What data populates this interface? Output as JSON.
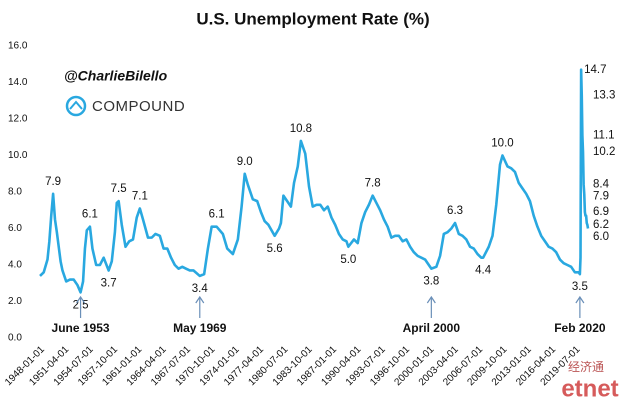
{
  "chart_data": {
    "type": "line",
    "title": "U.S. Unemployment Rate (%)",
    "handle": "@CharlieBilello",
    "brand": "COMPOUND",
    "watermark": [
      "经济通",
      "etnet"
    ],
    "color": "#29a8e0",
    "xlim": [
      "1948-01-01",
      "2021-03-01"
    ],
    "ylim": [
      0,
      16
    ],
    "yticks": [
      {
        "value": 0,
        "label": "0.0"
      },
      {
        "value": 2,
        "label": "2.0"
      },
      {
        "value": 4,
        "label": "4.0"
      },
      {
        "value": 6,
        "label": "6.0"
      },
      {
        "value": 8,
        "label": "8.0"
      },
      {
        "value": 10,
        "label": "10.0"
      },
      {
        "value": 12,
        "label": "12.0"
      },
      {
        "value": 14,
        "label": "14.0"
      },
      {
        "value": 16,
        "label": "16.0"
      }
    ],
    "xticks": [
      "1948-01-01",
      "1951-04-01",
      "1954-07-01",
      "1957-10-01",
      "1961-01-01",
      "1964-04-01",
      "1967-07-01",
      "1970-10-01",
      "1974-01-01",
      "1977-04-01",
      "1980-07-01",
      "1983-10-01",
      "1987-01-01",
      "1990-04-01",
      "1993-07-01",
      "1996-10-01",
      "2000-01-01",
      "2003-04-01",
      "2006-07-01",
      "2009-10-01",
      "2013-01-01",
      "2016-04-01",
      "2019-07-01"
    ],
    "x": [
      "1948-01-01",
      "1948-07-01",
      "1949-01-01",
      "1949-04-01",
      "1949-07-01",
      "1949-10-01",
      "1950-01-01",
      "1950-04-01",
      "1950-07-01",
      "1950-10-01",
      "1951-01-01",
      "1951-07-01",
      "1952-01-01",
      "1952-07-01",
      "1953-01-01",
      "1953-06-01",
      "1953-10-01",
      "1954-01-01",
      "1954-04-01",
      "1954-09-01",
      "1955-01-01",
      "1955-07-01",
      "1956-01-01",
      "1956-07-01",
      "1957-03-01",
      "1957-08-01",
      "1958-01-01",
      "1958-04-01",
      "1958-07-01",
      "1958-12-01",
      "1959-06-01",
      "1959-12-01",
      "1960-06-01",
      "1960-12-01",
      "1961-05-01",
      "1961-10-01",
      "1962-06-01",
      "1962-12-01",
      "1963-06-01",
      "1964-01-01",
      "1964-07-01",
      "1965-01-01",
      "1965-07-01",
      "1966-01-01",
      "1966-07-01",
      "1967-01-01",
      "1967-07-01",
      "1968-01-01",
      "1968-07-01",
      "1969-05-01",
      "1969-12-01",
      "1970-06-01",
      "1970-12-01",
      "1971-08-01",
      "1972-06-01",
      "1973-01-01",
      "1973-10-01",
      "1974-06-01",
      "1974-12-01",
      "1975-05-01",
      "1975-10-01",
      "1976-06-01",
      "1977-01-01",
      "1977-07-01",
      "1978-01-01",
      "1978-07-01",
      "1979-05-01",
      "1979-12-01",
      "1980-03-01",
      "1980-07-01",
      "1981-01-01",
      "1981-07-01",
      "1981-12-01",
      "1982-06-01",
      "1982-11-01",
      "1983-06-01",
      "1983-12-01",
      "1984-06-01",
      "1984-12-01",
      "1985-06-01",
      "1985-12-01",
      "1986-06-01",
      "1986-12-01",
      "1987-06-01",
      "1987-12-01",
      "1988-06-01",
      "1988-12-01",
      "1989-03-01",
      "1989-12-01",
      "1990-06-01",
      "1990-12-01",
      "1991-06-01",
      "1991-12-01",
      "1992-06-01",
      "1992-12-01",
      "1993-06-01",
      "1993-12-01",
      "1994-06-01",
      "1994-12-01",
      "1995-06-01",
      "1995-12-01",
      "1996-06-01",
      "1996-12-01",
      "1997-06-01",
      "1997-12-01",
      "1998-06-01",
      "1998-12-01",
      "1999-06-01",
      "1999-12-01",
      "2000-04-01",
      "2000-12-01",
      "2001-06-01",
      "2001-12-01",
      "2002-06-01",
      "2002-12-01",
      "2003-06-01",
      "2003-12-01",
      "2004-06-01",
      "2004-12-01",
      "2005-06-01",
      "2005-12-01",
      "2006-06-01",
      "2006-12-01",
      "2007-03-01",
      "2007-12-01",
      "2008-06-01",
      "2008-12-01",
      "2009-06-01",
      "2009-10-01",
      "2010-06-01",
      "2010-12-01",
      "2011-06-01",
      "2011-12-01",
      "2012-06-01",
      "2012-12-01",
      "2013-06-01",
      "2013-12-01",
      "2014-06-01",
      "2014-12-01",
      "2015-06-01",
      "2015-12-01",
      "2016-06-01",
      "2016-12-01",
      "2017-06-01",
      "2017-12-01",
      "2018-06-01",
      "2018-12-01",
      "2019-06-01",
      "2019-12-01",
      "2020-02-01",
      "2020-03-01",
      "2020-04-01",
      "2020-05-01",
      "2020-06-01",
      "2020-07-01",
      "2020-08-01",
      "2020-09-01",
      "2020-10-01",
      "2020-11-01",
      "2020-12-01",
      "2021-01-01",
      "2021-02-01",
      "2021-03-01"
    ],
    "values": [
      3.4,
      3.6,
      4.3,
      5.3,
      6.7,
      7.9,
      6.5,
      5.8,
      5.0,
      4.2,
      3.7,
      3.1,
      3.2,
      3.2,
      2.9,
      2.5,
      3.1,
      4.9,
      5.9,
      6.1,
      4.9,
      4.0,
      4.0,
      4.4,
      3.7,
      4.2,
      5.8,
      7.4,
      7.5,
      6.2,
      5.0,
      5.3,
      5.4,
      6.6,
      7.1,
      6.5,
      5.5,
      5.5,
      5.7,
      5.6,
      4.9,
      4.9,
      4.4,
      4.0,
      3.8,
      3.9,
      3.8,
      3.7,
      3.7,
      3.4,
      3.5,
      4.9,
      6.1,
      6.1,
      5.7,
      4.9,
      4.6,
      5.4,
      7.2,
      9.0,
      8.4,
      7.6,
      7.5,
      6.9,
      6.4,
      6.2,
      5.6,
      6.0,
      6.3,
      7.8,
      7.5,
      7.2,
      8.5,
      9.4,
      10.8,
      10.1,
      8.3,
      7.2,
      7.3,
      7.3,
      7.0,
      7.2,
      6.6,
      6.2,
      5.7,
      5.4,
      5.3,
      5.0,
      5.4,
      5.2,
      6.3,
      6.9,
      7.3,
      7.8,
      7.4,
      7.0,
      6.5,
      6.1,
      5.5,
      5.6,
      5.6,
      5.3,
      5.4,
      5.0,
      4.7,
      4.5,
      4.4,
      4.3,
      4.0,
      3.8,
      3.9,
      4.5,
      5.7,
      5.8,
      6.0,
      6.3,
      5.7,
      5.6,
      5.4,
      5.0,
      4.9,
      4.6,
      4.4,
      4.4,
      5.0,
      5.6,
      7.3,
      9.5,
      10.0,
      9.4,
      9.3,
      9.1,
      8.5,
      8.2,
      7.9,
      7.5,
      6.7,
      6.1,
      5.6,
      5.3,
      5.0,
      4.9,
      4.7,
      4.3,
      4.1,
      4.0,
      3.9,
      3.6,
      3.6,
      3.5,
      4.4,
      14.7,
      13.3,
      11.1,
      10.2,
      8.4,
      7.9,
      6.9,
      6.7,
      6.7,
      6.3,
      6.2,
      6.0
    ],
    "annotations": [
      {
        "x": "1949-10-01",
        "value": 7.9,
        "label": "7.9"
      },
      {
        "x": "1953-06-01",
        "value": 2.5,
        "label": "2.5"
      },
      {
        "x": "1954-09-01",
        "value": 6.1,
        "label": "6.1"
      },
      {
        "x": "1957-03-01",
        "value": 3.7,
        "label": "3.7"
      },
      {
        "x": "1958-07-01",
        "value": 7.5,
        "label": "7.5"
      },
      {
        "x": "1961-05-01",
        "value": 7.1,
        "label": "7.1"
      },
      {
        "x": "1969-05-01",
        "value": 3.4,
        "label": "3.4"
      },
      {
        "x": "1971-08-01",
        "value": 6.1,
        "label": "6.1"
      },
      {
        "x": "1975-05-01",
        "value": 9.0,
        "label": "9.0"
      },
      {
        "x": "1979-05-01",
        "value": 5.6,
        "label": "5.6"
      },
      {
        "x": "1982-11-01",
        "value": 10.8,
        "label": "10.8"
      },
      {
        "x": "1989-03-01",
        "value": 5.0,
        "label": "5.0"
      },
      {
        "x": "1992-06-01",
        "value": 7.8,
        "label": "7.8"
      },
      {
        "x": "2000-04-01",
        "value": 3.8,
        "label": "3.8"
      },
      {
        "x": "2003-06-01",
        "value": 6.3,
        "label": "6.3"
      },
      {
        "x": "2007-03-01",
        "value": 4.4,
        "label": "4.4"
      },
      {
        "x": "2009-10-01",
        "value": 10.0,
        "label": "10.0"
      },
      {
        "x": "2020-02-01",
        "value": 3.5,
        "label": "3.5"
      },
      {
        "x": "2020-04-01",
        "value": 14.7,
        "label": "14.7"
      },
      {
        "x": "2020-05-01",
        "value": 13.3,
        "label": "13.3"
      },
      {
        "x": "2020-06-01",
        "value": 11.1,
        "label": "11.1"
      },
      {
        "x": "2020-07-01",
        "value": 10.2,
        "label": "10.2"
      },
      {
        "x": "2020-08-01",
        "value": 8.4,
        "label": "8.4"
      },
      {
        "x": "2020-09-01",
        "value": 7.9,
        "label": "7.9"
      },
      {
        "x": "2020-10-01",
        "value": 6.9,
        "label": "6.9"
      },
      {
        "x": "2021-02-01",
        "value": 6.2,
        "label": "6.2"
      },
      {
        "x": "2021-03-01",
        "value": 6.0,
        "label": "6.0"
      }
    ],
    "callouts": [
      {
        "x": "1953-06-01",
        "label": "June 1953"
      },
      {
        "x": "1969-05-01",
        "label": "May 1969"
      },
      {
        "x": "2000-04-01",
        "label": "April 2000"
      },
      {
        "x": "2020-02-01",
        "label": "Feb 2020"
      }
    ]
  }
}
